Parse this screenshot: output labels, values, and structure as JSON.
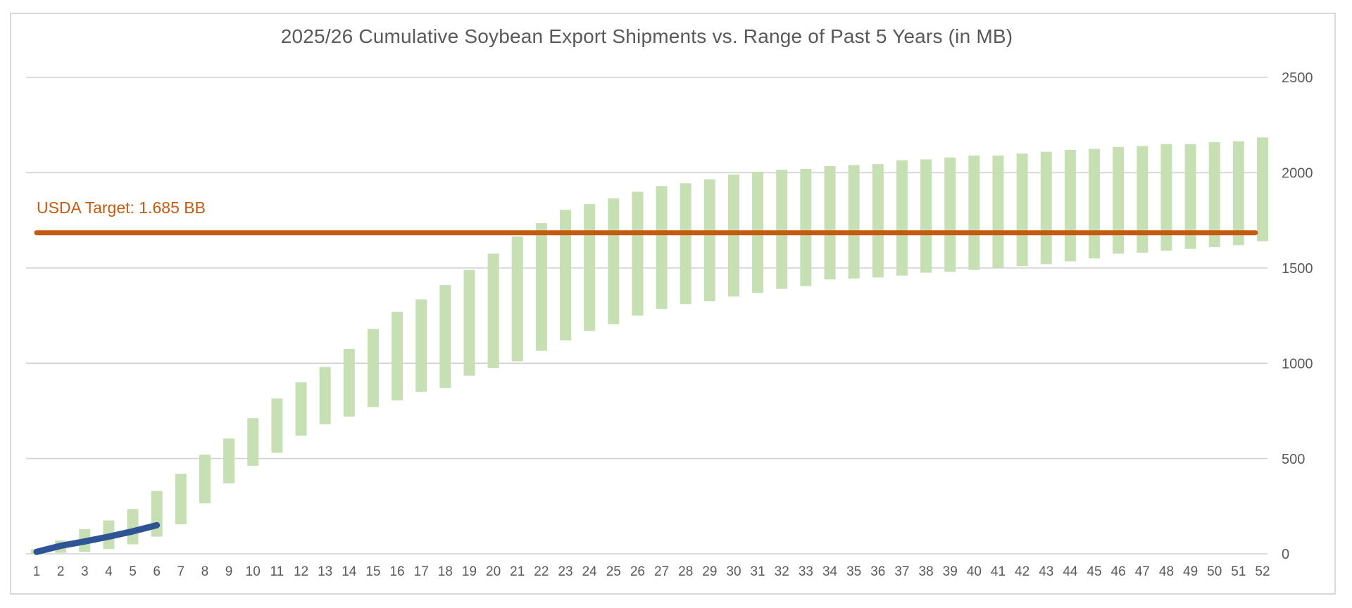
{
  "chart_data": {
    "type": "bar",
    "subtype": "floating-range-columns-with-lines",
    "title": "2025/26 Cumulative Soybean Export Shipments vs. Range of Past 5 Years (in MB)",
    "units": "MB",
    "grid": true,
    "legend": false,
    "categories": [
      "1",
      "2",
      "3",
      "4",
      "5",
      "6",
      "7",
      "8",
      "9",
      "10",
      "11",
      "12",
      "13",
      "14",
      "15",
      "16",
      "17",
      "18",
      "19",
      "20",
      "21",
      "22",
      "23",
      "24",
      "25",
      "26",
      "27",
      "28",
      "29",
      "30",
      "31",
      "32",
      "33",
      "34",
      "35",
      "36",
      "37",
      "38",
      "39",
      "40",
      "41",
      "42",
      "43",
      "44",
      "45",
      "46",
      "47",
      "48",
      "49",
      "50",
      "51",
      "52"
    ],
    "x_axis": {
      "label_every": 1
    },
    "y_axis": {
      "side": "right",
      "range": [
        0,
        2500
      ],
      "ticks": [
        0,
        500,
        1000,
        1500,
        2000,
        2500
      ]
    },
    "series": [
      {
        "name": "Range of Past 5 Years",
        "type": "range-bar",
        "color": "#c6e0b4",
        "low": [
          2,
          5,
          10,
          25,
          50,
          90,
          155,
          265,
          370,
          462,
          530,
          620,
          680,
          720,
          770,
          805,
          850,
          870,
          935,
          975,
          1010,
          1065,
          1120,
          1170,
          1205,
          1250,
          1285,
          1310,
          1325,
          1350,
          1370,
          1390,
          1405,
          1440,
          1445,
          1450,
          1460,
          1475,
          1480,
          1490,
          1500,
          1510,
          1520,
          1535,
          1550,
          1575,
          1580,
          1590,
          1600,
          1610,
          1620,
          1640
        ],
        "high": [
          25,
          70,
          130,
          175,
          235,
          330,
          420,
          520,
          605,
          712,
          815,
          900,
          980,
          1075,
          1180,
          1270,
          1335,
          1410,
          1490,
          1575,
          1665,
          1735,
          1805,
          1835,
          1865,
          1900,
          1930,
          1945,
          1965,
          1990,
          2005,
          2015,
          2020,
          2035,
          2040,
          2045,
          2065,
          2070,
          2080,
          2090,
          2090,
          2100,
          2110,
          2120,
          2125,
          2135,
          2140,
          2150,
          2150,
          2160,
          2165,
          2185
        ]
      },
      {
        "name": "USDA Target",
        "type": "hline",
        "label": "USDA Target: 1.685 BB",
        "value": 1685,
        "x_span_weeks": [
          1,
          52
        ],
        "color": "#c55a11"
      },
      {
        "name": "2025/26 Cumulative Shipments",
        "type": "line",
        "color": "#2f5496",
        "x": [
          1,
          2,
          3,
          4,
          5,
          6
        ],
        "values": [
          10,
          42,
          65,
          90,
          118,
          150
        ]
      }
    ]
  },
  "colors": {
    "range_bar": "#c6e0b4",
    "target_line": "#c55a11",
    "current_line": "#2f5496",
    "gridline": "#d2d2d2",
    "axis_text": "#595959",
    "title_text": "#595959",
    "frame_border": "#d9d9d9"
  }
}
